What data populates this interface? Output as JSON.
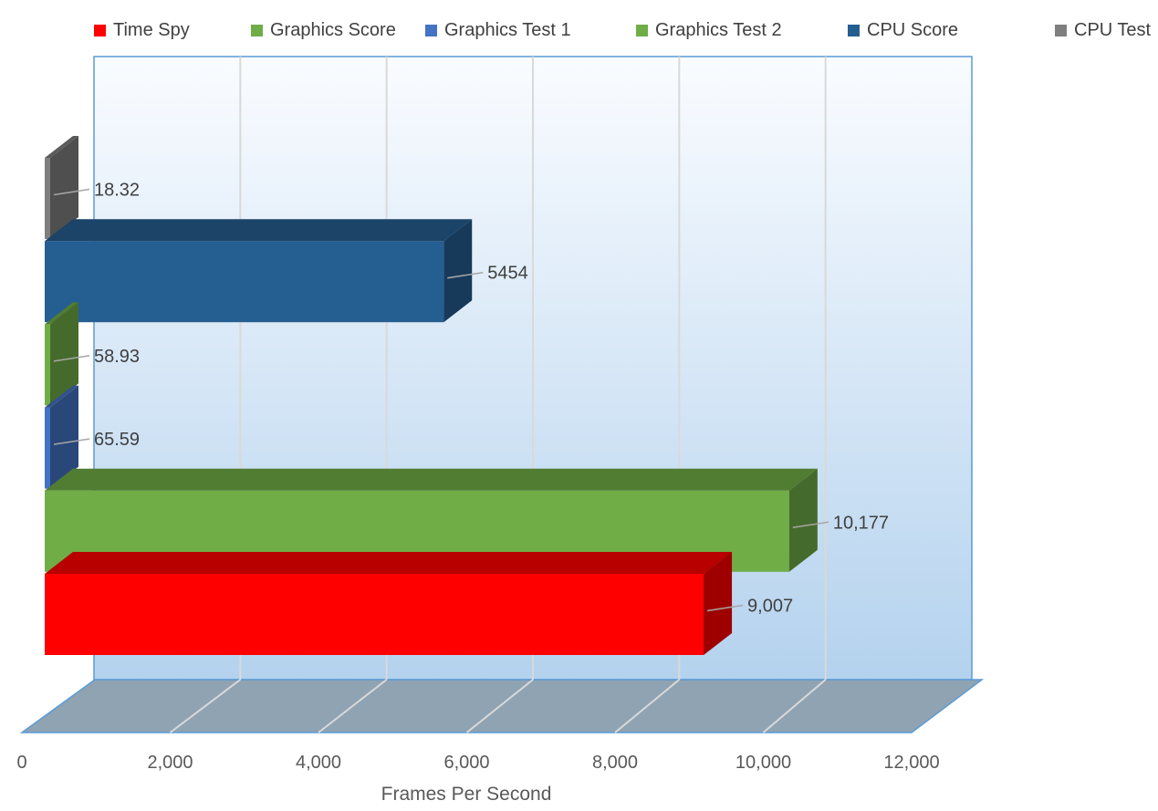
{
  "chart_data": {
    "type": "bar",
    "orientation": "horizontal",
    "style": "3d",
    "xlabel": "Frames Per Second",
    "xlim": [
      0,
      12000
    ],
    "x_ticks": [
      "0",
      "2,000",
      "4,000",
      "6,000",
      "8,000",
      "10,000",
      "12,000"
    ],
    "grid": true,
    "legend_position": "top",
    "bars": [
      {
        "name": "CPU Test",
        "value": 18.32,
        "label": "18.32",
        "color": "#7f7f7f"
      },
      {
        "name": "CPU Score",
        "value": 5454,
        "label": "5454",
        "color": "#255e91"
      },
      {
        "name": "Graphics Test 2",
        "value": 58.93,
        "label": "58.93",
        "color": "#70ad47"
      },
      {
        "name": "Graphics Test 1",
        "value": 65.59,
        "label": "65.59",
        "color": "#4472c4"
      },
      {
        "name": "Graphics Score",
        "value": 10177,
        "label": "10,177",
        "color": "#70ad47"
      },
      {
        "name": "Time Spy",
        "value": 9007,
        "label": "9,007",
        "color": "#ff0000"
      }
    ]
  }
}
